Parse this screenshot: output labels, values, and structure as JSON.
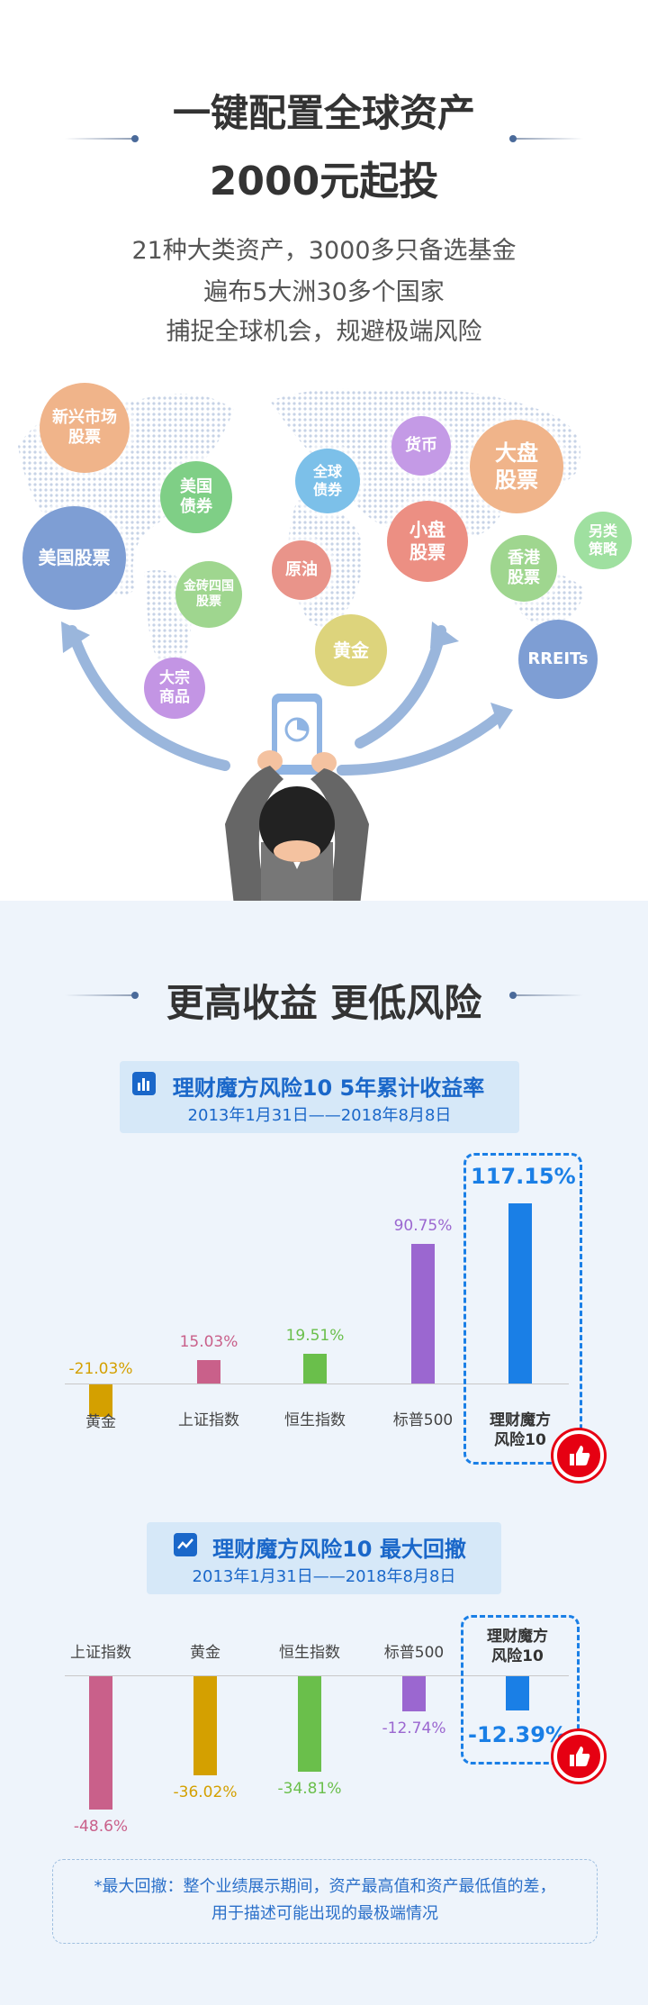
{
  "header": {
    "title_line1": "一键配置全球资产",
    "title_line2": "2000元起投",
    "sub_line1": "21种大类资产，3000多只备选基金",
    "sub_line2": "遍布5大洲30多个国家",
    "sub_line3": "捕捉全球机会，规避极端风险"
  },
  "assets": {
    "emerging": "新兴市场\n股票",
    "us_bond": "美国\n债券",
    "us_stock": "美国股票",
    "brics": "金砖四国\n股票",
    "commodity": "大宗\n商品",
    "global_bond": "全球\n债券",
    "oil": "原油",
    "gold": "黄金",
    "money": "货币",
    "small_cap": "小盘\n股票",
    "large_cap": "大盘\n股票",
    "hk_stock": "香港\n股票",
    "alt": "另类\n策略",
    "reits": "RREITs"
  },
  "section2": {
    "title": "更高收益 更低风险"
  },
  "chart_data": [
    {
      "type": "bar",
      "title": "理财魔方风险10 5年累计收益率",
      "subtitle": "2013年1月31日——2018年8月8日",
      "categories": [
        "黄金",
        "上证指数",
        "恒生指数",
        "标普500",
        "理财魔方\n风险10"
      ],
      "values": [
        -21.03,
        15.03,
        19.51,
        90.75,
        117.15
      ],
      "labels": [
        "-21.03%",
        "15.03%",
        "19.51%",
        "90.75%",
        "117.15%"
      ],
      "colors": [
        "#d4a000",
        "#c9608a",
        "#6abf4b",
        "#9b67d0",
        "#1a7fe6"
      ],
      "highlight": 4
    },
    {
      "type": "bar",
      "title": "理财魔方风险10 最大回撤",
      "subtitle": "2013年1月31日——2018年8月8日",
      "categories": [
        "上证指数",
        "黄金",
        "恒生指数",
        "标普500",
        "理财魔方\n风险10"
      ],
      "values": [
        -48.6,
        -36.02,
        -34.81,
        -12.74,
        -12.39
      ],
      "labels": [
        "-48.6%",
        "-36.02%",
        "-34.81%",
        "-12.74%",
        "-12.39%"
      ],
      "colors": [
        "#c9608a",
        "#d4a000",
        "#6abf4b",
        "#9b67d0",
        "#1a7fe6"
      ],
      "highlight": 4
    }
  ],
  "note": {
    "line1": "*最大回撤：整个业绩展示期间，资产最高值和资产最低值的差，",
    "line2": "用于描述可能出现的最极端情况"
  }
}
